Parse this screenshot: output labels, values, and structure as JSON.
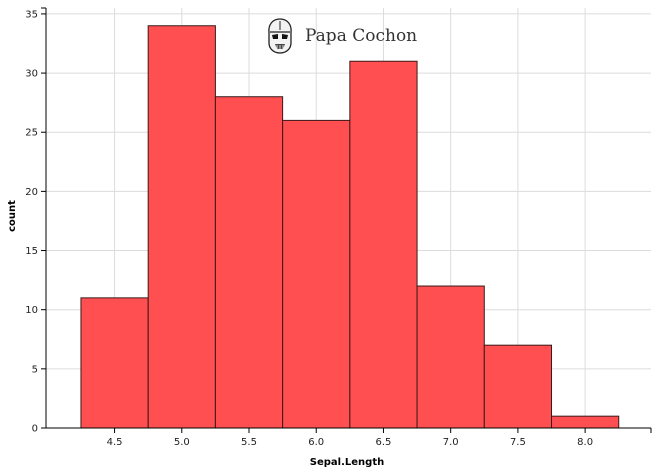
{
  "chart_data": {
    "type": "bar",
    "histogram": true,
    "xlabel": "Sepal.Length",
    "ylabel": "count",
    "bins": [
      {
        "x0": 4.25,
        "x1": 4.75,
        "count": 11
      },
      {
        "x0": 4.75,
        "x1": 5.25,
        "count": 34
      },
      {
        "x0": 5.25,
        "x1": 5.75,
        "count": 28
      },
      {
        "x0": 5.75,
        "x1": 6.25,
        "count": 26
      },
      {
        "x0": 6.25,
        "x1": 6.75,
        "count": 31
      },
      {
        "x0": 6.75,
        "x1": 7.25,
        "count": 12
      },
      {
        "x0": 7.25,
        "x1": 7.75,
        "count": 7
      },
      {
        "x0": 7.75,
        "x1": 8.25,
        "count": 1
      }
    ],
    "xlim": [
      3.99,
      8.49
    ],
    "ylim": [
      0,
      35.5
    ],
    "x_ticks": [
      4.5,
      5.0,
      5.5,
      6.0,
      6.5,
      7.0,
      7.5,
      8.0
    ],
    "x_tick_labels": [
      "4.5",
      "5.0",
      "5.5",
      "6.0",
      "6.5",
      "7.0",
      "7.5",
      "8.0"
    ],
    "y_ticks": [
      0,
      5,
      10,
      15,
      20,
      25,
      30,
      35
    ],
    "y_tick_labels": [
      "0",
      "5",
      "10",
      "15",
      "20",
      "25",
      "30",
      "35"
    ],
    "grid": true,
    "bar_color": "#ff4b4d",
    "bar_stroke": "#3a1a1a"
  },
  "watermark": {
    "text": "Papa Cochon",
    "icon": "stormtrooper-icon"
  }
}
